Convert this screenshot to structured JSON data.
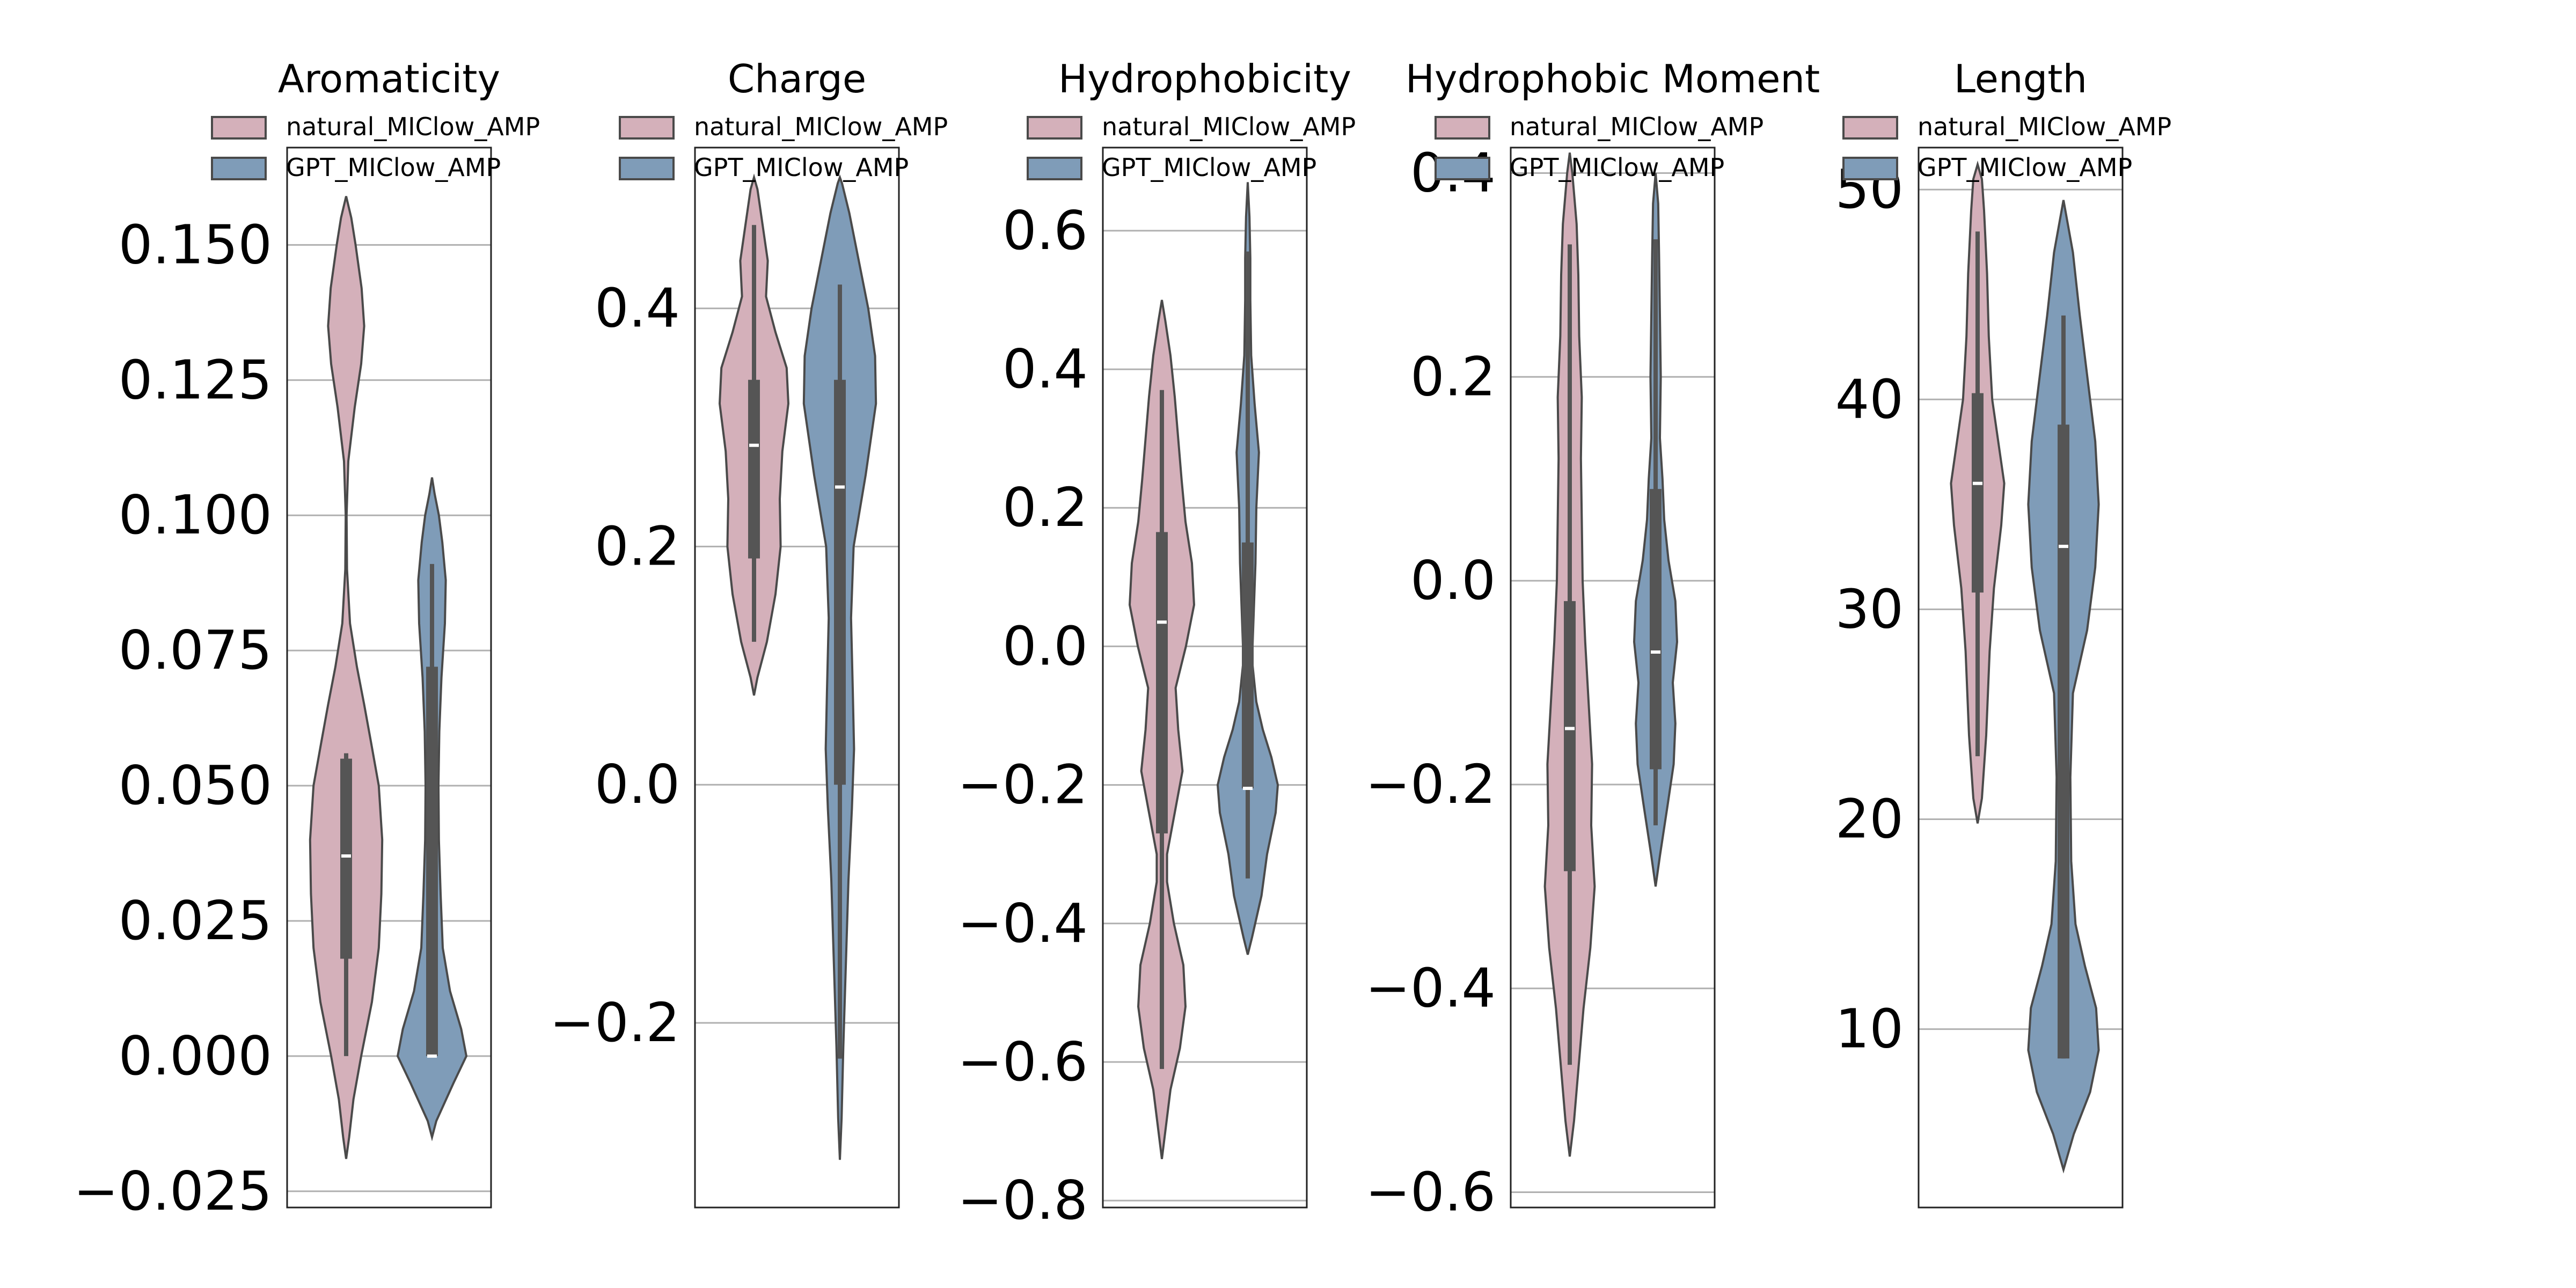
{
  "chart_data": [
    {
      "type": "violin",
      "title": "Aromaticity",
      "ylim": [
        -0.028,
        0.168
      ],
      "yticks": [
        -0.025,
        0.0,
        0.025,
        0.05,
        0.075,
        0.1,
        0.125,
        0.15
      ],
      "ytick_labels": [
        "−0.025",
        "0.000",
        "0.025",
        "0.050",
        "0.075",
        "0.100",
        "0.125",
        "0.150"
      ],
      "grid": true,
      "legend": [
        {
          "label": "natural_MIClow_AMP",
          "color": "#d4b0ba"
        },
        {
          "label": "GPT_MIClow_AMP",
          "color": "#7f9cb8"
        }
      ],
      "series": [
        {
          "name": "natural_MIClow_AMP",
          "color": "#d4b0ba",
          "median": 0.037,
          "q1": 0.018,
          "q3": 0.055,
          "whisker_low": 0.0,
          "whisker_high": 0.056,
          "density": [
            [
              -0.019,
              0.0
            ],
            [
              -0.015,
              0.07
            ],
            [
              -0.008,
              0.17
            ],
            [
              0.0,
              0.35
            ],
            [
              0.01,
              0.6
            ],
            [
              0.02,
              0.76
            ],
            [
              0.03,
              0.82
            ],
            [
              0.04,
              0.84
            ],
            [
              0.05,
              0.76
            ],
            [
              0.058,
              0.58
            ],
            [
              0.065,
              0.42
            ],
            [
              0.072,
              0.25
            ],
            [
              0.08,
              0.09
            ],
            [
              0.09,
              0.02
            ],
            [
              0.1,
              0.01
            ],
            [
              0.11,
              0.05
            ],
            [
              0.12,
              0.2
            ],
            [
              0.128,
              0.35
            ],
            [
              0.135,
              0.42
            ],
            [
              0.142,
              0.36
            ],
            [
              0.15,
              0.22
            ],
            [
              0.155,
              0.12
            ],
            [
              0.159,
              0.0
            ]
          ]
        },
        {
          "name": "GPT_MIClow_AMP",
          "color": "#7f9cb8",
          "median": 0.0,
          "q1": 0.0,
          "q3": 0.072,
          "whisker_low": 0.0,
          "whisker_high": 0.091,
          "density": [
            [
              -0.015,
              0.0
            ],
            [
              -0.012,
              0.1
            ],
            [
              -0.005,
              0.5
            ],
            [
              0.0,
              0.8
            ],
            [
              0.005,
              0.68
            ],
            [
              0.012,
              0.42
            ],
            [
              0.02,
              0.25
            ],
            [
              0.03,
              0.2
            ],
            [
              0.04,
              0.16
            ],
            [
              0.05,
              0.15
            ],
            [
              0.06,
              0.17
            ],
            [
              0.07,
              0.22
            ],
            [
              0.08,
              0.3
            ],
            [
              0.088,
              0.32
            ],
            [
              0.095,
              0.24
            ],
            [
              0.1,
              0.16
            ],
            [
              0.104,
              0.06
            ],
            [
              0.107,
              0.0
            ]
          ]
        }
      ]
    },
    {
      "type": "violin",
      "title": "Charge",
      "ylim": [
        -0.355,
        0.535
      ],
      "yticks": [
        -0.2,
        0.0,
        0.2,
        0.4
      ],
      "ytick_labels": [
        "−0.2",
        "0.0",
        "0.2",
        "0.4"
      ],
      "grid": true,
      "legend": [
        {
          "label": "natural_MIClow_AMP",
          "color": "#d4b0ba"
        },
        {
          "label": "GPT_MIClow_AMP",
          "color": "#7f9cb8"
        }
      ],
      "series": [
        {
          "name": "natural_MIClow_AMP",
          "color": "#d4b0ba",
          "median": 0.285,
          "q1": 0.19,
          "q3": 0.34,
          "whisker_low": 0.12,
          "whisker_high": 0.47,
          "density": [
            [
              0.075,
              0.0
            ],
            [
              0.09,
              0.08
            ],
            [
              0.12,
              0.3
            ],
            [
              0.16,
              0.5
            ],
            [
              0.2,
              0.62
            ],
            [
              0.24,
              0.6
            ],
            [
              0.28,
              0.66
            ],
            [
              0.32,
              0.8
            ],
            [
              0.35,
              0.76
            ],
            [
              0.38,
              0.5
            ],
            [
              0.41,
              0.28
            ],
            [
              0.44,
              0.32
            ],
            [
              0.47,
              0.2
            ],
            [
              0.5,
              0.08
            ],
            [
              0.51,
              0.0
            ]
          ]
        },
        {
          "name": "GPT_MIClow_AMP",
          "color": "#7f9cb8",
          "median": 0.25,
          "q1": 0.0,
          "q3": 0.34,
          "whisker_low": -0.23,
          "whisker_high": 0.42,
          "density": [
            [
              -0.315,
              0.0
            ],
            [
              -0.28,
              0.04
            ],
            [
              -0.22,
              0.08
            ],
            [
              -0.15,
              0.14
            ],
            [
              -0.08,
              0.2
            ],
            [
              -0.02,
              0.28
            ],
            [
              0.03,
              0.33
            ],
            [
              0.08,
              0.3
            ],
            [
              0.14,
              0.26
            ],
            [
              0.2,
              0.32
            ],
            [
              0.26,
              0.6
            ],
            [
              0.32,
              0.84
            ],
            [
              0.36,
              0.82
            ],
            [
              0.4,
              0.66
            ],
            [
              0.44,
              0.44
            ],
            [
              0.48,
              0.22
            ],
            [
              0.505,
              0.05
            ],
            [
              0.51,
              0.0
            ]
          ]
        }
      ]
    },
    {
      "type": "violin",
      "title": "Hydrophobicity",
      "ylim": [
        -0.81,
        0.72
      ],
      "yticks": [
        -0.8,
        -0.6,
        -0.4,
        -0.2,
        0.0,
        0.2,
        0.4,
        0.6
      ],
      "ytick_labels": [
        "−0.8",
        "−0.6",
        "−0.4",
        "−0.2",
        "0.0",
        "0.2",
        "0.4",
        "0.6"
      ],
      "grid": true,
      "legend": [
        {
          "label": "natural_MIClow_AMP",
          "color": "#d4b0ba"
        },
        {
          "label": "GPT_MIClow_AMP",
          "color": "#7f9cb8"
        }
      ],
      "series": [
        {
          "name": "natural_MIClow_AMP",
          "color": "#d4b0ba",
          "median": 0.035,
          "q1": -0.27,
          "q3": 0.165,
          "whisker_low": -0.61,
          "whisker_high": 0.37,
          "density": [
            [
              -0.74,
              0.0
            ],
            [
              -0.7,
              0.08
            ],
            [
              -0.64,
              0.2
            ],
            [
              -0.58,
              0.42
            ],
            [
              -0.52,
              0.55
            ],
            [
              -0.46,
              0.5
            ],
            [
              -0.4,
              0.28
            ],
            [
              -0.34,
              0.12
            ],
            [
              -0.3,
              0.12
            ],
            [
              -0.24,
              0.3
            ],
            [
              -0.18,
              0.48
            ],
            [
              -0.12,
              0.38
            ],
            [
              -0.06,
              0.32
            ],
            [
              0.0,
              0.56
            ],
            [
              0.06,
              0.75
            ],
            [
              0.12,
              0.7
            ],
            [
              0.18,
              0.55
            ],
            [
              0.24,
              0.46
            ],
            [
              0.3,
              0.38
            ],
            [
              0.36,
              0.3
            ],
            [
              0.42,
              0.2
            ],
            [
              0.47,
              0.08
            ],
            [
              0.5,
              0.0
            ]
          ]
        },
        {
          "name": "GPT_MIClow_AMP",
          "color": "#7f9cb8",
          "median": -0.205,
          "q1": -0.205,
          "q3": 0.15,
          "whisker_low": -0.335,
          "whisker_high": 0.57,
          "density": [
            [
              -0.445,
              0.0
            ],
            [
              -0.42,
              0.1
            ],
            [
              -0.36,
              0.32
            ],
            [
              -0.3,
              0.45
            ],
            [
              -0.24,
              0.65
            ],
            [
              -0.2,
              0.7
            ],
            [
              -0.16,
              0.55
            ],
            [
              -0.12,
              0.35
            ],
            [
              -0.08,
              0.2
            ],
            [
              -0.02,
              0.1
            ],
            [
              0.05,
              0.14
            ],
            [
              0.12,
              0.18
            ],
            [
              0.2,
              0.2
            ],
            [
              0.28,
              0.26
            ],
            [
              0.35,
              0.16
            ],
            [
              0.42,
              0.08
            ],
            [
              0.5,
              0.06
            ],
            [
              0.56,
              0.06
            ],
            [
              0.62,
              0.04
            ],
            [
              0.67,
              0.0
            ]
          ]
        }
      ]
    },
    {
      "type": "violin",
      "title": "Hydrophobic Moment",
      "ylim": [
        -0.615,
        0.425
      ],
      "yticks": [
        -0.6,
        -0.4,
        -0.2,
        0.0,
        0.2,
        0.4
      ],
      "ytick_labels": [
        "−0.6",
        "−0.4",
        "−0.2",
        "0.0",
        "0.2",
        "0.4"
      ],
      "grid": true,
      "legend": [
        {
          "label": "natural_MIClow_AMP",
          "color": "#d4b0ba"
        },
        {
          "label": "GPT_MIClow_AMP",
          "color": "#7f9cb8"
        }
      ],
      "series": [
        {
          "name": "natural_MIClow_AMP",
          "color": "#d4b0ba",
          "median": -0.145,
          "q1": -0.285,
          "q3": -0.02,
          "whisker_low": -0.475,
          "whisker_high": 0.33,
          "density": [
            [
              -0.565,
              0.0
            ],
            [
              -0.53,
              0.1
            ],
            [
              -0.48,
              0.2
            ],
            [
              -0.42,
              0.32
            ],
            [
              -0.36,
              0.48
            ],
            [
              -0.3,
              0.58
            ],
            [
              -0.24,
              0.5
            ],
            [
              -0.18,
              0.52
            ],
            [
              -0.12,
              0.44
            ],
            [
              -0.06,
              0.36
            ],
            [
              0.0,
              0.3
            ],
            [
              0.06,
              0.28
            ],
            [
              0.12,
              0.26
            ],
            [
              0.18,
              0.28
            ],
            [
              0.24,
              0.22
            ],
            [
              0.3,
              0.2
            ],
            [
              0.35,
              0.16
            ],
            [
              0.4,
              0.06
            ],
            [
              0.42,
              0.0
            ]
          ]
        },
        {
          "name": "GPT_MIClow_AMP",
          "color": "#7f9cb8",
          "median": -0.07,
          "q1": -0.185,
          "q3": 0.09,
          "whisker_low": -0.24,
          "whisker_high": 0.335,
          "density": [
            [
              -0.3,
              0.0
            ],
            [
              -0.27,
              0.1
            ],
            [
              -0.22,
              0.28
            ],
            [
              -0.18,
              0.42
            ],
            [
              -0.14,
              0.46
            ],
            [
              -0.1,
              0.4
            ],
            [
              -0.06,
              0.5
            ],
            [
              -0.02,
              0.46
            ],
            [
              0.02,
              0.3
            ],
            [
              0.06,
              0.2
            ],
            [
              0.1,
              0.16
            ],
            [
              0.14,
              0.1
            ],
            [
              0.2,
              0.12
            ],
            [
              0.26,
              0.1
            ],
            [
              0.32,
              0.08
            ],
            [
              0.37,
              0.06
            ],
            [
              0.4,
              0.0
            ]
          ]
        }
      ]
    },
    {
      "type": "violin",
      "title": "Length",
      "ylim": [
        1.5,
        52.0
      ],
      "yticks": [
        10,
        20,
        30,
        40,
        50
      ],
      "ytick_labels": [
        "10",
        "20",
        "30",
        "40",
        "50"
      ],
      "grid": true,
      "legend": [
        {
          "label": "natural_MIClow_AMP",
          "color": "#d4b0ba"
        },
        {
          "label": "GPT_MIClow_AMP",
          "color": "#7f9cb8"
        }
      ],
      "series": [
        {
          "name": "natural_MIClow_AMP",
          "color": "#d4b0ba",
          "median": 36,
          "q1": 30.8,
          "q3": 40.3,
          "whisker_low": 23,
          "whisker_high": 48,
          "density": [
            [
              19.8,
              0.0
            ],
            [
              21,
              0.1
            ],
            [
              24,
              0.2
            ],
            [
              28,
              0.28
            ],
            [
              31,
              0.38
            ],
            [
              34,
              0.55
            ],
            [
              36,
              0.62
            ],
            [
              38,
              0.48
            ],
            [
              40,
              0.34
            ],
            [
              43,
              0.26
            ],
            [
              46,
              0.22
            ],
            [
              49,
              0.15
            ],
            [
              50.5,
              0.1
            ],
            [
              51.2,
              0.0
            ]
          ]
        },
        {
          "name": "GPT_MIClow_AMP",
          "color": "#7f9cb8",
          "median": 33,
          "q1": 8.6,
          "q3": 38.8,
          "whisker_low": 8.6,
          "whisker_high": 44,
          "density": [
            [
              3.3,
              0.0
            ],
            [
              5,
              0.24
            ],
            [
              7,
              0.62
            ],
            [
              9,
              0.82
            ],
            [
              11,
              0.76
            ],
            [
              13,
              0.5
            ],
            [
              15,
              0.28
            ],
            [
              18,
              0.18
            ],
            [
              22,
              0.16
            ],
            [
              26,
              0.22
            ],
            [
              29,
              0.55
            ],
            [
              32,
              0.74
            ],
            [
              35,
              0.82
            ],
            [
              38,
              0.74
            ],
            [
              41,
              0.56
            ],
            [
              44,
              0.38
            ],
            [
              47,
              0.22
            ],
            [
              49.5,
              0.0
            ]
          ]
        }
      ]
    }
  ]
}
